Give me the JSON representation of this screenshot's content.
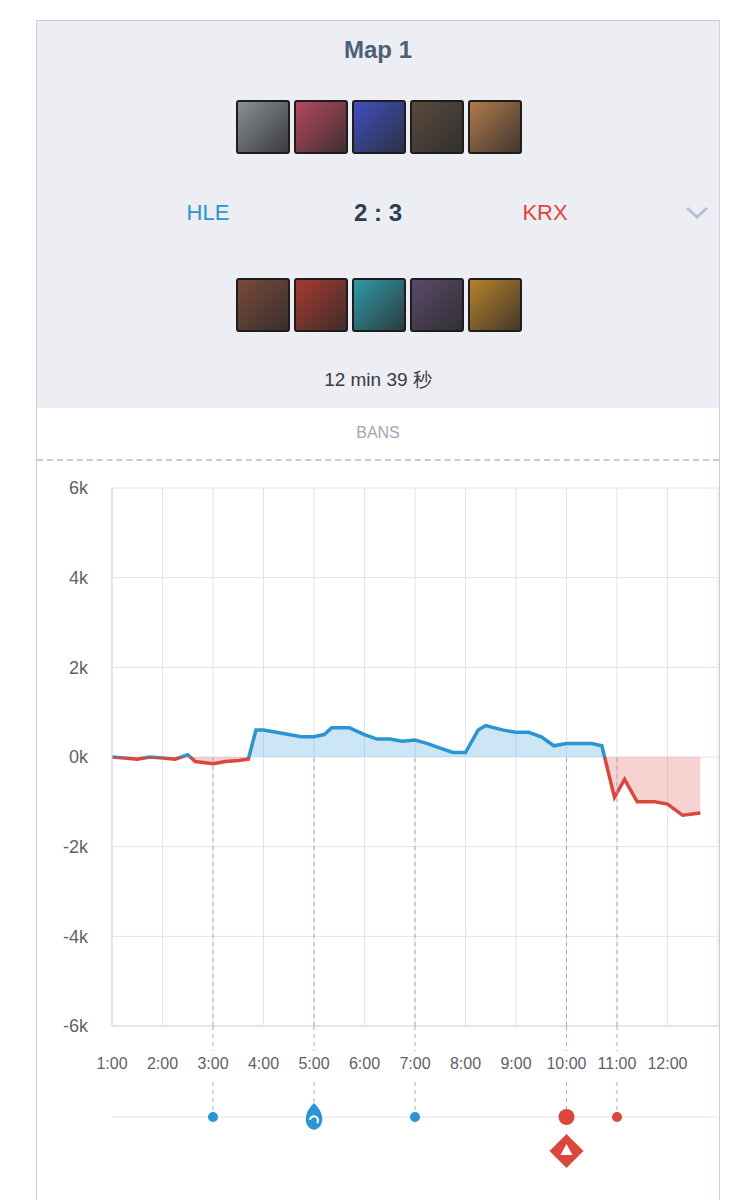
{
  "header": {
    "title": "Map 1",
    "teams": [
      {
        "name": "HLE",
        "color": "#2a95d2"
      },
      {
        "name": "KRX",
        "color": "#d9473d"
      }
    ],
    "score": "2 : 3",
    "duration": "12 min 39 秒",
    "bans": "BANS"
  },
  "chart_data": {
    "type": "area",
    "x": [
      1,
      1.25,
      1.5,
      1.75,
      2,
      2.25,
      2.5,
      2.65,
      3,
      3.25,
      3.5,
      3.7,
      3.85,
      4,
      4.25,
      4.5,
      4.75,
      5,
      5.2,
      5.35,
      5.7,
      6,
      6.25,
      6.5,
      6.75,
      7,
      7.25,
      7.5,
      7.75,
      8,
      8.25,
      8.4,
      8.75,
      9,
      9.25,
      9.5,
      9.75,
      10,
      10.25,
      10.5,
      10.7,
      10.95,
      11.15,
      11.4,
      11.75,
      12,
      12.3,
      12.65
    ],
    "values": [
      0,
      -0.02,
      -0.05,
      0,
      -0.02,
      -0.05,
      0.05,
      -0.1,
      -0.15,
      -0.1,
      -0.08,
      -0.05,
      0.6,
      0.6,
      0.55,
      0.5,
      0.45,
      0.45,
      0.5,
      0.65,
      0.65,
      0.5,
      0.4,
      0.4,
      0.35,
      0.38,
      0.3,
      0.2,
      0.1,
      0.1,
      0.6,
      0.7,
      0.6,
      0.55,
      0.55,
      0.45,
      0.25,
      0.3,
      0.3,
      0.3,
      0.25,
      -0.9,
      -0.5,
      -1.0,
      -1.0,
      -1.05,
      -1.3,
      -1.25
    ],
    "xlim": [
      1,
      13
    ],
    "xticks": [
      {
        "value": 1,
        "label": "1:00"
      },
      {
        "value": 2,
        "label": "2:00"
      },
      {
        "value": 3,
        "label": "3:00"
      },
      {
        "value": 4,
        "label": "4:00"
      },
      {
        "value": 5,
        "label": "5:00"
      },
      {
        "value": 6,
        "label": "6:00"
      },
      {
        "value": 7,
        "label": "7:00"
      },
      {
        "value": 8,
        "label": "8:00"
      },
      {
        "value": 9,
        "label": "9:00"
      },
      {
        "value": 10,
        "label": "10:00"
      },
      {
        "value": 11,
        "label": "11:00"
      },
      {
        "value": 12,
        "label": "12:00"
      }
    ],
    "ylim": [
      -6,
      6
    ],
    "yticks": [
      {
        "value": 6,
        "label": "6k"
      },
      {
        "value": 4,
        "label": "4k"
      },
      {
        "value": 2,
        "label": "2k"
      },
      {
        "value": 0,
        "label": "0k"
      },
      {
        "value": -2,
        "label": "-2k"
      },
      {
        "value": -4,
        "label": "-4k"
      },
      {
        "value": -6,
        "label": "-6k"
      }
    ],
    "grid": true,
    "events": [
      {
        "x": 3,
        "team": "HLE",
        "marker": "dot"
      },
      {
        "x": 5,
        "team": "HLE",
        "marker": "dragon"
      },
      {
        "x": 7,
        "team": "HLE",
        "marker": "dot"
      },
      {
        "x": 10,
        "team": "KRX",
        "marker": "big_dot"
      },
      {
        "x": 10,
        "team": "KRX",
        "marker": "diamond"
      },
      {
        "x": 11,
        "team": "KRX",
        "marker": "dot"
      }
    ]
  }
}
